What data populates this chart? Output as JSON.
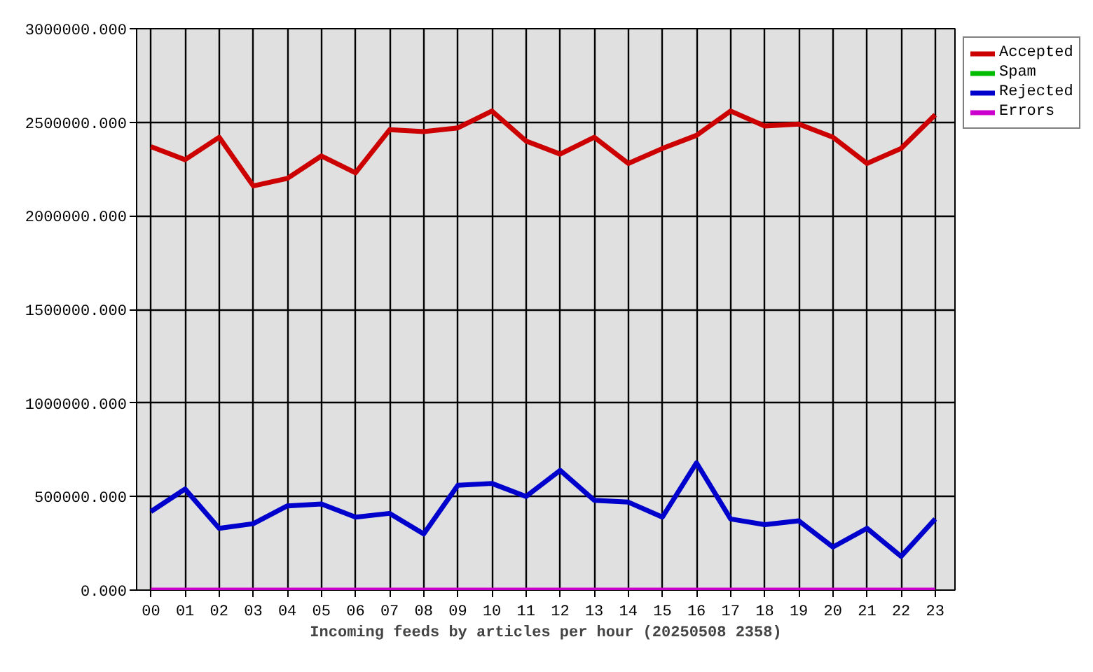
{
  "chart_data": {
    "type": "line",
    "xlabel": "Incoming feeds by articles per hour (20250508 2358)",
    "categories": [
      "00",
      "01",
      "02",
      "03",
      "04",
      "05",
      "06",
      "07",
      "08",
      "09",
      "10",
      "11",
      "12",
      "13",
      "14",
      "15",
      "16",
      "17",
      "18",
      "19",
      "20",
      "21",
      "22",
      "23"
    ],
    "series": [
      {
        "name": "Accepted",
        "color": "#cc0000",
        "values": [
          2370000,
          2300000,
          2420000,
          2160000,
          2200000,
          2320000,
          2230000,
          2460000,
          2450000,
          2470000,
          2560000,
          2400000,
          2330000,
          2420000,
          2280000,
          2360000,
          2430000,
          2560000,
          2480000,
          2490000,
          2420000,
          2280000,
          2360000,
          2540000
        ]
      },
      {
        "name": "Spam",
        "color": "#00bb00",
        "values": [
          null,
          null,
          null,
          null,
          null,
          null,
          null,
          null,
          null,
          null,
          null,
          null,
          null,
          null,
          null,
          null,
          null,
          null,
          null,
          null,
          null,
          null,
          null,
          null
        ]
      },
      {
        "name": "Rejected",
        "color": "#0000cc",
        "values": [
          420000,
          540000,
          330000,
          355000,
          450000,
          460000,
          390000,
          410000,
          300000,
          560000,
          570000,
          500000,
          640000,
          480000,
          470000,
          390000,
          680000,
          380000,
          350000,
          370000,
          230000,
          330000,
          180000,
          380000
        ]
      },
      {
        "name": "Errors",
        "color": "#cc00cc",
        "values": [
          0,
          0,
          0,
          0,
          0,
          0,
          0,
          0,
          0,
          0,
          0,
          0,
          0,
          0,
          0,
          0,
          0,
          0,
          0,
          0,
          0,
          0,
          0,
          0
        ]
      }
    ],
    "ylim": [
      0,
      3000000
    ],
    "yticks": [
      {
        "value": 0,
        "label": "0.000"
      },
      {
        "value": 500000,
        "label": "500000.000"
      },
      {
        "value": 1000000,
        "label": "1000000.000"
      },
      {
        "value": 1500000,
        "label": "1500000.000"
      },
      {
        "value": 2000000,
        "label": "2000000.000"
      },
      {
        "value": 2500000,
        "label": "2500000.000"
      },
      {
        "value": 3000000,
        "label": "3000000.000"
      }
    ],
    "grid": true,
    "legend": "top right",
    "line_style": "solid"
  }
}
